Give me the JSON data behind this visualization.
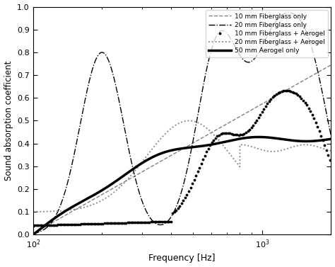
{
  "title": "",
  "xlabel": "Frequency [Hz]",
  "ylabel": "Sound absorption coefficient",
  "xlim": [
    100,
    2000
  ],
  "ylim": [
    0,
    1.0
  ],
  "yticks": [
    0,
    0.1,
    0.2,
    0.3,
    0.4,
    0.5,
    0.6,
    0.7,
    0.8,
    0.9,
    1.0
  ],
  "xticks": [
    100,
    1000
  ],
  "xticklabels": [
    "10$^2$",
    "10$^3$"
  ],
  "legend_labels": [
    "10 mm Fiberglass only",
    "20 mm Fiberglass only",
    "10 mm Fiberglass + Aerogel",
    "20 mm Fiberglass + Aerogel",
    "50 mm Aerogel only"
  ],
  "colors": [
    "gray",
    "black",
    "black",
    "gray",
    "black"
  ],
  "background_color": "#ffffff"
}
